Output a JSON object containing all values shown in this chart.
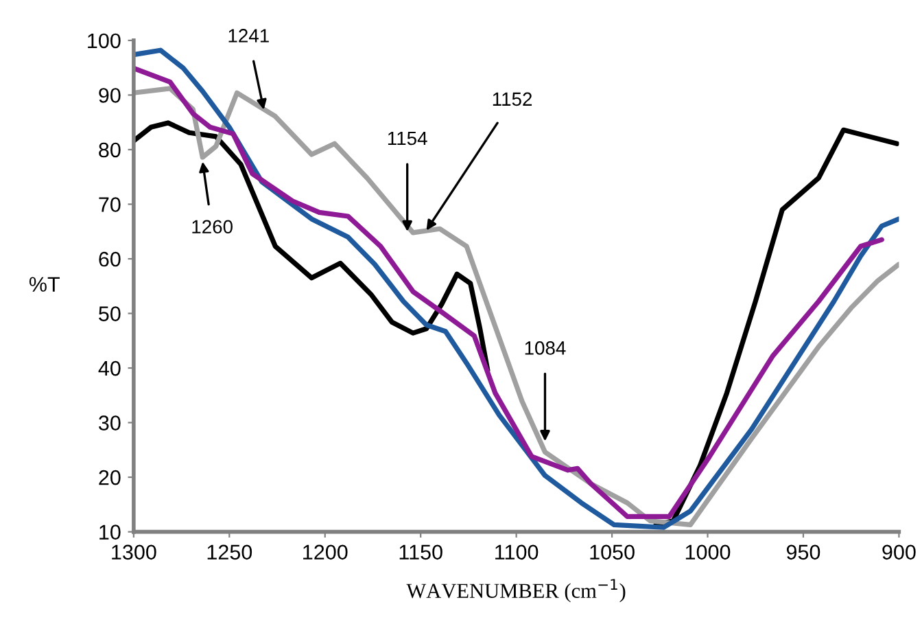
{
  "chart_data": {
    "type": "line",
    "xlabel": "WAVENUMBER (cm$^{−1}$)",
    "ylabel": "%T",
    "xlim": [
      1300,
      900
    ],
    "xticks": [
      1300,
      1250,
      1200,
      1150,
      1100,
      1050,
      1000,
      950,
      900
    ],
    "ylim": [
      10,
      100
    ],
    "yticks": [
      10,
      20,
      30,
      40,
      50,
      60,
      70,
      80,
      90,
      100
    ],
    "grid": false,
    "legend": false,
    "marker": "none",
    "line_style": "solid",
    "series": [
      {
        "color": "#000000",
        "x": [
          1300,
          1291,
          1282,
          1271,
          1257,
          1244,
          1226,
          1207,
          1192,
          1176,
          1165,
          1154,
          1147,
          1139,
          1131,
          1124,
          1119,
          1115,
          null,
          1027,
          1018,
          1004,
          990,
          975,
          961,
          942,
          929,
          901
        ],
        "values": [
          81.6,
          84.1,
          84.9,
          83.1,
          82.4,
          77.3,
          62.3,
          56.5,
          59.2,
          53.5,
          48.4,
          46.4,
          47.2,
          51.7,
          57.2,
          55.5,
          47.2,
          39.6,
          null,
          11.3,
          12.0,
          22.1,
          35.4,
          52.2,
          69.0,
          74.8,
          83.6,
          81.1
        ]
      },
      {
        "color": "#a0a0a0",
        "x": [
          1300,
          1281,
          1269,
          1264,
          1257,
          1246,
          1226,
          1207,
          1195,
          1178,
          1154,
          1140,
          1126,
          1114,
          1097,
          1085,
          1061,
          1042,
          1030,
          1009,
          977,
          942,
          925,
          911,
          900
        ],
        "values": [
          90.4,
          91.2,
          87.4,
          78.6,
          80.6,
          90.4,
          86.1,
          79.1,
          81.1,
          74.8,
          64.8,
          65.5,
          62.3,
          50.5,
          33.9,
          24.6,
          18.8,
          15.3,
          12.0,
          11.3,
          27.1,
          43.9,
          51.0,
          56.0,
          59.0
        ]
      },
      {
        "color": "#1f5a9e",
        "x": [
          1300,
          1286,
          1274,
          1264,
          1250,
          1233,
          1207,
          1188,
          1174,
          1159,
          1147,
          1137,
          1126,
          1109,
          1085,
          1066,
          1049,
          1023,
          1009,
          977,
          934,
          920,
          909,
          900
        ],
        "values": [
          97.4,
          98.2,
          94.9,
          90.7,
          84.1,
          74.1,
          67.3,
          64.0,
          59.0,
          52.2,
          47.9,
          46.7,
          40.9,
          31.4,
          20.3,
          15.3,
          11.3,
          10.8,
          13.8,
          28.8,
          52.2,
          60.5,
          66.0,
          67.3
        ]
      },
      {
        "color": "#8e1a96",
        "x": [
          1300,
          1281,
          1269,
          1260,
          1248,
          1238,
          1217,
          1203,
          1188,
          1171,
          1154,
          1140,
          1122,
          1111,
          1092,
          1073,
          1068,
          1061,
          1042,
          1020,
          999,
          966,
          942,
          920,
          909
        ],
        "values": [
          94.9,
          92.4,
          86.6,
          84.1,
          82.9,
          75.6,
          70.6,
          68.5,
          67.8,
          62.3,
          54.0,
          50.5,
          45.9,
          35.4,
          23.8,
          21.3,
          21.6,
          18.8,
          12.8,
          12.8,
          23.8,
          42.2,
          52.2,
          62.3,
          63.5
        ]
      }
    ],
    "annotations": [
      {
        "text": "1241",
        "x": 1232,
        "y": 87.3
      },
      {
        "text": "1260",
        "x": 1264,
        "y": 77.8
      },
      {
        "text": "1154",
        "x": 1157,
        "y": 65.0
      },
      {
        "text": "1152",
        "x": 1147,
        "y": 65.2
      },
      {
        "text": "1084",
        "x": 1085,
        "y": 26.6
      }
    ]
  }
}
